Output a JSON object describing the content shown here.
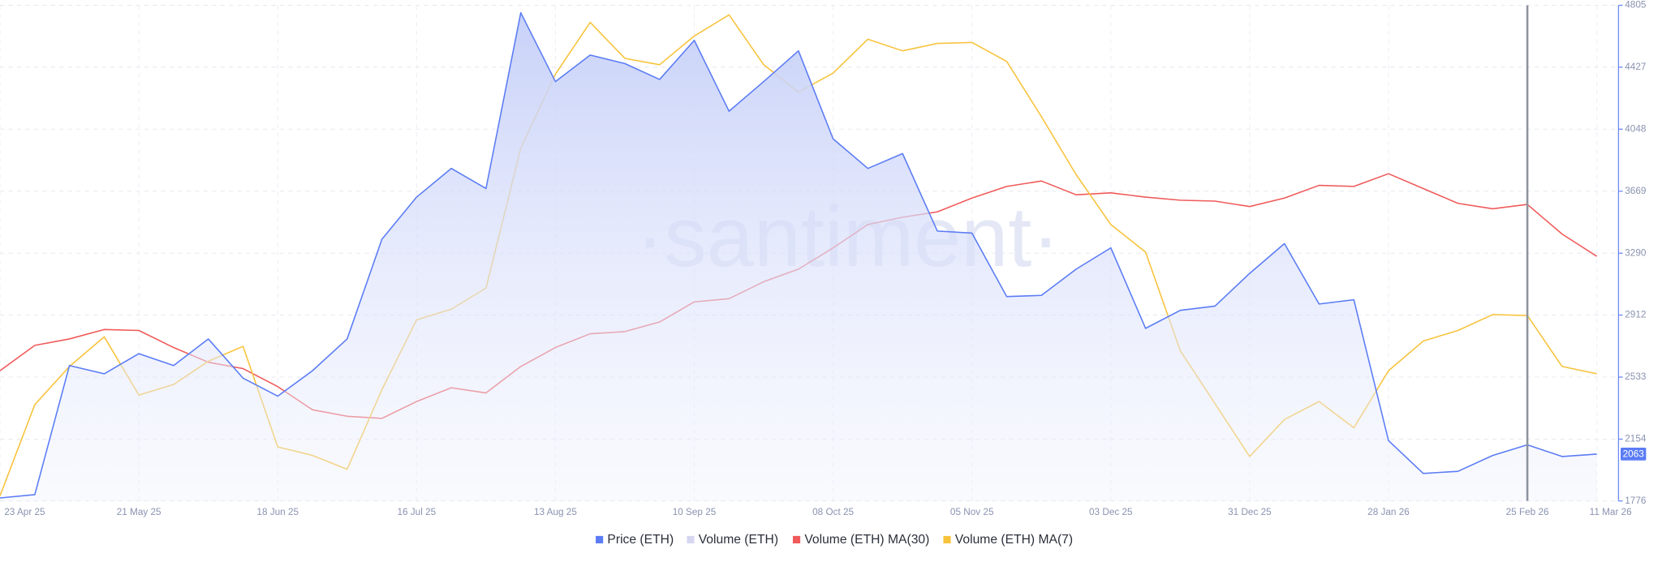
{
  "chart_data": {
    "type": "line",
    "watermark": "·santiment·",
    "categories": [
      "23 Apr 25",
      null,
      null,
      null,
      "21 May 25",
      null,
      null,
      null,
      "18 Jun 25",
      null,
      null,
      null,
      "16 Jul 25",
      null,
      null,
      null,
      "13 Aug 25",
      null,
      null,
      null,
      "10 Sep 25",
      null,
      null,
      null,
      "08 Oct 25",
      null,
      null,
      null,
      "05 Nov 25",
      null,
      null,
      null,
      "03 Dec 25",
      null,
      null,
      null,
      "31 Dec 25",
      null,
      null,
      null,
      "28 Jan 26",
      null,
      null,
      null,
      "25 Feb 26",
      null,
      "11 Mar 26"
    ],
    "series": [
      {
        "name": "Price (ETH)",
        "color": "#5b7cf5",
        "area": true,
        "values": [
          1795,
          1815,
          2604,
          2553,
          2676,
          2604,
          2766,
          2527,
          2417,
          2572,
          2766,
          3375,
          3633,
          3808,
          3685,
          4760,
          4339,
          4501,
          4449,
          4352,
          4591,
          4158,
          4339,
          4527,
          3989,
          3808,
          3899,
          3426,
          3413,
          3025,
          3032,
          3193,
          3323,
          2831,
          2941,
          2967,
          3167,
          3349,
          2980,
          3006,
          2145,
          1944,
          1957,
          2054,
          2119,
          2048,
          2063
        ]
      },
      {
        "name": "Volume (ETH)",
        "color": "#d6d6f2"
      },
      {
        "name": "Volume (ETH) MA(30)",
        "color": "#f05a5a",
        "values": [
          2572,
          2727,
          2766,
          2824,
          2818,
          2714,
          2624,
          2585,
          2475,
          2333,
          2294,
          2281,
          2384,
          2468,
          2436,
          2598,
          2714,
          2798,
          2811,
          2870,
          2993,
          3012,
          3116,
          3193,
          3323,
          3465,
          3510,
          3543,
          3627,
          3698,
          3731,
          3647,
          3659,
          3633,
          3614,
          3608,
          3575,
          3627,
          3705,
          3698,
          3776,
          3685,
          3595,
          3562,
          3588,
          3407,
          3271
        ]
      },
      {
        "name": "Volume (ETH) MA(7)",
        "color": "#f8c33c",
        "values": [
          1808,
          2365,
          2598,
          2779,
          2423,
          2488,
          2630,
          2721,
          2106,
          2054,
          1970,
          2456,
          2883,
          2948,
          3077,
          3931,
          4384,
          4701,
          4481,
          4442,
          4617,
          4747,
          4442,
          4274,
          4391,
          4598,
          4527,
          4572,
          4578,
          4462,
          4125,
          3770,
          3465,
          3297,
          2695,
          2371,
          2048,
          2274,
          2384,
          2223,
          2572,
          2753,
          2818,
          2915,
          2909,
          2598,
          2553
        ]
      }
    ],
    "ylim": [
      1776,
      4805
    ],
    "yticks": [
      1776,
      2154,
      2533,
      2912,
      3290,
      3669,
      4048,
      4427,
      4805
    ],
    "grid": true,
    "legend": "bottom"
  }
}
